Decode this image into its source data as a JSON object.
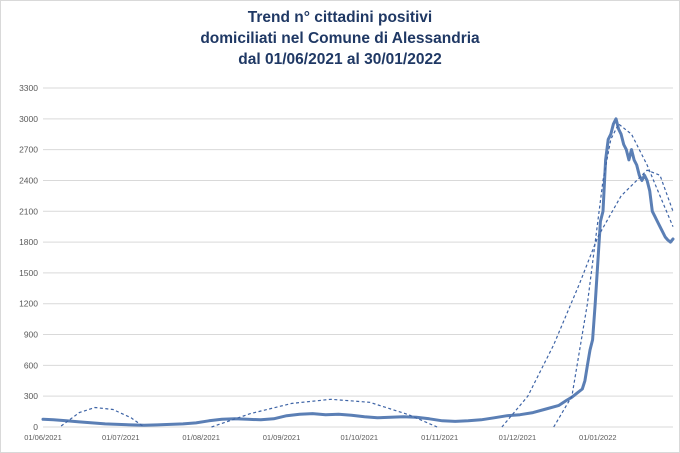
{
  "title_lines": [
    "Trend n° cittadini positivi",
    "domiciliati nel Comune di Alessandria",
    "dal 01/06/2021 al 30/01/2022"
  ],
  "colors": {
    "series": "#5b7fb5",
    "trend": "#3e64a6",
    "grid": "#d9d9d9",
    "title": "#1f3864",
    "axis_text": "#595959"
  },
  "chart_data": {
    "type": "line",
    "title": "Trend n° cittadini positivi domiciliati nel Comune di Alessandria dal 01/06/2021 al 30/01/2022",
    "xlabel": "",
    "ylabel": "",
    "grid": true,
    "legend": "none",
    "ylim": [
      0,
      3300
    ],
    "yticks": [
      0,
      300,
      600,
      900,
      1200,
      1500,
      1800,
      2100,
      2400,
      2700,
      3000,
      3300
    ],
    "xticks": [
      "01/06/2021",
      "01/07/2021",
      "01/08/2021",
      "01/09/2021",
      "01/10/2021",
      "01/11/2021",
      "01/12/2021",
      "01/01/2022"
    ],
    "x_start": "01/06/2021",
    "x_end": "30/01/2022",
    "series": [
      {
        "style": "solid",
        "x": [
          "01/06/2021",
          "05/06/2021",
          "10/06/2021",
          "15/06/2021",
          "20/06/2021",
          "25/06/2021",
          "30/06/2021",
          "05/07/2021",
          "10/07/2021",
          "15/07/2021",
          "20/07/2021",
          "25/07/2021",
          "30/07/2021",
          "04/08/2021",
          "09/08/2021",
          "14/08/2021",
          "19/08/2021",
          "24/08/2021",
          "29/08/2021",
          "03/09/2021",
          "08/09/2021",
          "13/09/2021",
          "18/09/2021",
          "23/09/2021",
          "28/09/2021",
          "03/10/2021",
          "08/10/2021",
          "13/10/2021",
          "18/10/2021",
          "23/10/2021",
          "28/10/2021",
          "02/11/2021",
          "07/11/2021",
          "12/11/2021",
          "17/11/2021",
          "22/11/2021",
          "27/11/2021",
          "02/12/2021",
          "07/12/2021",
          "12/12/2021",
          "17/12/2021",
          "20/12/2021",
          "22/12/2021",
          "24/12/2021",
          "26/12/2021",
          "27/12/2021",
          "28/12/2021",
          "29/12/2021",
          "30/12/2021",
          "31/12/2021",
          "01/01/2022",
          "02/01/2022",
          "03/01/2022",
          "04/01/2022",
          "05/01/2022",
          "06/01/2022",
          "07/01/2022",
          "08/01/2022",
          "09/01/2022",
          "10/01/2022",
          "11/01/2022",
          "12/01/2022",
          "13/01/2022",
          "14/01/2022",
          "15/01/2022",
          "16/01/2022",
          "17/01/2022",
          "18/01/2022",
          "19/01/2022",
          "20/01/2022",
          "21/01/2022",
          "22/01/2022",
          "23/01/2022",
          "24/01/2022",
          "25/01/2022",
          "26/01/2022",
          "27/01/2022",
          "28/01/2022",
          "29/01/2022",
          "30/01/2022"
        ],
        "y": [
          75,
          70,
          60,
          50,
          40,
          30,
          25,
          20,
          18,
          20,
          25,
          30,
          40,
          60,
          75,
          80,
          75,
          70,
          80,
          110,
          125,
          130,
          120,
          125,
          115,
          100,
          90,
          95,
          100,
          95,
          80,
          60,
          55,
          60,
          70,
          90,
          110,
          120,
          140,
          175,
          210,
          260,
          290,
          330,
          370,
          450,
          600,
          750,
          850,
          1200,
          1600,
          2000,
          2100,
          2600,
          2800,
          2850,
          2950,
          3000,
          2900,
          2850,
          2750,
          2700,
          2600,
          2700,
          2600,
          2550,
          2450,
          2400,
          2450,
          2400,
          2300,
          2100,
          2050,
          2000,
          1950,
          1900,
          1850,
          1820,
          1800,
          1830
        ]
      },
      {
        "style": "dashed",
        "x": [
          "08/06/2021",
          "15/06/2021",
          "21/06/2021",
          "28/06/2021",
          "05/07/2021",
          "10/07/2021"
        ],
        "y": [
          10,
          140,
          190,
          170,
          90,
          0
        ]
      },
      {
        "style": "dashed",
        "x": [
          "05/08/2021",
          "20/08/2021",
          "05/09/2021",
          "20/09/2021",
          "05/10/2021",
          "20/10/2021",
          "31/10/2021"
        ],
        "y": [
          0,
          130,
          230,
          270,
          240,
          120,
          0
        ]
      },
      {
        "style": "dashed",
        "x": [
          "25/11/2021",
          "05/12/2021",
          "15/12/2021",
          "25/12/2021",
          "01/01/2022",
          "10/01/2022",
          "20/01/2022",
          "25/01/2022",
          "30/01/2022"
        ],
        "y": [
          0,
          300,
          800,
          1400,
          1850,
          2250,
          2500,
          2450,
          2100
        ]
      },
      {
        "style": "dashed",
        "x": [
          "15/12/2021",
          "22/12/2021",
          "28/12/2021",
          "31/12/2021",
          "03/01/2022",
          "06/01/2022",
          "09/01/2022",
          "14/01/2022",
          "20/01/2022",
          "25/01/2022",
          "30/01/2022"
        ],
        "y": [
          0,
          300,
          1200,
          1800,
          2400,
          2800,
          2950,
          2850,
          2550,
          2250,
          1950
        ]
      }
    ]
  }
}
